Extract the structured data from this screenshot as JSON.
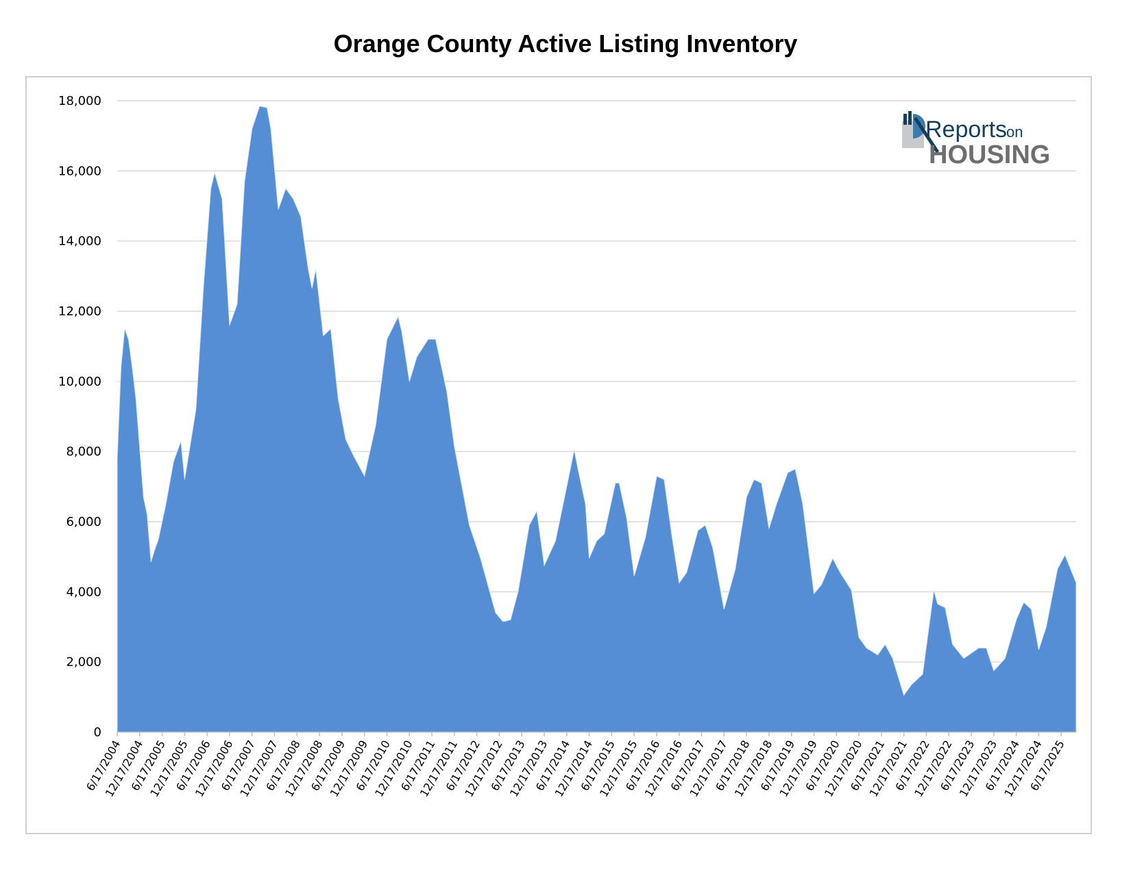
{
  "chart_data": {
    "type": "area",
    "title": "Orange County Active Listing Inventory",
    "xlabel": "",
    "ylabel": "",
    "ylim": [
      0,
      18000
    ],
    "yticks": [
      "0",
      "2,000",
      "4,000",
      "6,000",
      "8,000",
      "10,000",
      "12,000",
      "14,000",
      "16,000",
      "18,000"
    ],
    "ytick_values": [
      0,
      2000,
      4000,
      6000,
      8000,
      10000,
      12000,
      14000,
      16000,
      18000
    ],
    "xlim": [
      "2004-06-17",
      "2025-10-17"
    ],
    "xticks": [
      "6/17/2004",
      "12/17/2004",
      "6/17/2005",
      "12/17/2005",
      "6/17/2006",
      "12/17/2006",
      "6/17/2007",
      "12/17/2007",
      "6/17/2008",
      "12/17/2008",
      "6/17/2009",
      "12/17/2009",
      "6/17/2010",
      "12/17/2010",
      "6/17/2011",
      "12/17/2011",
      "6/17/2012",
      "12/17/2012",
      "6/17/2013",
      "12/17/2013",
      "6/17/2014",
      "12/17/2014",
      "6/17/2015",
      "12/17/2015",
      "6/17/2016",
      "12/17/2016",
      "6/17/2017",
      "12/17/2017",
      "6/17/2018",
      "12/17/2018",
      "6/17/2019",
      "12/17/2019",
      "6/17/2020",
      "12/17/2020",
      "6/17/2021",
      "12/17/2021",
      "6/17/2022",
      "12/17/2022",
      "6/17/2023",
      "12/17/2023",
      "6/17/2024",
      "12/17/2024",
      "6/17/2025"
    ],
    "grid": true,
    "legend": "none",
    "colors": {
      "fill": "#558ED5",
      "grid": "#d9d9d9",
      "border": "#bfbfbf"
    },
    "points": [
      [
        "2004-06",
        7800
      ],
      [
        "2004-07",
        10400
      ],
      [
        "2004-08",
        11500
      ],
      [
        "2004-09",
        11200
      ],
      [
        "2004-10",
        10400
      ],
      [
        "2004-11",
        9500
      ],
      [
        "2005-01",
        6700
      ],
      [
        "2005-02",
        6200
      ],
      [
        "2005-03",
        4850
      ],
      [
        "2005-04",
        5200
      ],
      [
        "2005-05",
        5500
      ],
      [
        "2005-07",
        6500
      ],
      [
        "2005-09",
        7700
      ],
      [
        "2005-11",
        8300
      ],
      [
        "2005-12",
        7200
      ],
      [
        "2006-03",
        9200
      ],
      [
        "2006-05",
        12650
      ],
      [
        "2006-07",
        15500
      ],
      [
        "2006-08",
        15950
      ],
      [
        "2006-10",
        15200
      ],
      [
        "2006-12",
        11600
      ],
      [
        "2007-02",
        12200
      ],
      [
        "2007-04",
        15700
      ],
      [
        "2007-06",
        17200
      ],
      [
        "2007-08",
        17850
      ],
      [
        "2007-10",
        17800
      ],
      [
        "2007-11",
        17200
      ],
      [
        "2008-01",
        14900
      ],
      [
        "2008-03",
        15500
      ],
      [
        "2008-05",
        15200
      ],
      [
        "2008-07",
        14700
      ],
      [
        "2008-09",
        13200
      ],
      [
        "2008-10",
        12650
      ],
      [
        "2008-11",
        13200
      ],
      [
        "2009-01",
        11300
      ],
      [
        "2009-03",
        11500
      ],
      [
        "2009-05",
        9500
      ],
      [
        "2009-07",
        8350
      ],
      [
        "2009-09",
        7900
      ],
      [
        "2009-12",
        7300
      ],
      [
        "2010-03",
        8750
      ],
      [
        "2010-06",
        11200
      ],
      [
        "2010-09",
        11850
      ],
      [
        "2010-10",
        11400
      ],
      [
        "2010-12",
        10000
      ],
      [
        "2011-02",
        10700
      ],
      [
        "2011-05",
        11200
      ],
      [
        "2011-07",
        11200
      ],
      [
        "2011-10",
        9700
      ],
      [
        "2011-12",
        8150
      ],
      [
        "2012-04",
        5900
      ],
      [
        "2012-07",
        4950
      ],
      [
        "2012-11",
        3400
      ],
      [
        "2013-01",
        3150
      ],
      [
        "2013-03",
        3200
      ],
      [
        "2013-05",
        4000
      ],
      [
        "2013-08",
        5900
      ],
      [
        "2013-10",
        6300
      ],
      [
        "2013-12",
        4750
      ],
      [
        "2014-03",
        5450
      ],
      [
        "2014-06",
        7000
      ],
      [
        "2014-08",
        8050
      ],
      [
        "2014-09",
        7500
      ],
      [
        "2014-11",
        6500
      ],
      [
        "2014-12",
        4950
      ],
      [
        "2015-02",
        5450
      ],
      [
        "2015-04",
        5650
      ],
      [
        "2015-07",
        7100
      ],
      [
        "2015-08",
        7100
      ],
      [
        "2015-10",
        6100
      ],
      [
        "2015-12",
        4450
      ],
      [
        "2016-03",
        5550
      ],
      [
        "2016-06",
        7300
      ],
      [
        "2016-08",
        7200
      ],
      [
        "2016-10",
        5650
      ],
      [
        "2016-12",
        4250
      ],
      [
        "2017-02",
        4550
      ],
      [
        "2017-05",
        5750
      ],
      [
        "2017-07",
        5900
      ],
      [
        "2017-09",
        5250
      ],
      [
        "2017-12",
        3500
      ],
      [
        "2018-03",
        4650
      ],
      [
        "2018-06",
        6700
      ],
      [
        "2018-08",
        7200
      ],
      [
        "2018-10",
        7100
      ],
      [
        "2018-12",
        5800
      ],
      [
        "2019-02",
        6500
      ],
      [
        "2019-05",
        7400
      ],
      [
        "2019-07",
        7500
      ],
      [
        "2019-09",
        6500
      ],
      [
        "2019-12",
        3950
      ],
      [
        "2020-02",
        4200
      ],
      [
        "2020-05",
        4950
      ],
      [
        "2020-07",
        4550
      ],
      [
        "2020-10",
        4050
      ],
      [
        "2020-12",
        2700
      ],
      [
        "2021-02",
        2400
      ],
      [
        "2021-05",
        2200
      ],
      [
        "2021-07",
        2500
      ],
      [
        "2021-09",
        2100
      ],
      [
        "2021-12",
        1050
      ],
      [
        "2022-02",
        1350
      ],
      [
        "2022-05",
        1650
      ],
      [
        "2022-08",
        4050
      ],
      [
        "2022-09",
        3650
      ],
      [
        "2022-11",
        3550
      ],
      [
        "2023-01",
        2500
      ],
      [
        "2023-04",
        2100
      ],
      [
        "2023-08",
        2400
      ],
      [
        "2023-10",
        2400
      ],
      [
        "2023-12",
        1750
      ],
      [
        "2024-03",
        2100
      ],
      [
        "2024-06",
        3200
      ],
      [
        "2024-08",
        3700
      ],
      [
        "2024-10",
        3500
      ],
      [
        "2024-12",
        2350
      ],
      [
        "2025-02",
        3000
      ],
      [
        "2025-05",
        4650
      ],
      [
        "2025-07",
        5050
      ],
      [
        "2025-10",
        4250
      ]
    ]
  },
  "logo": {
    "line1": "Reports",
    "line1b": "on",
    "line2": "HOUSING"
  }
}
